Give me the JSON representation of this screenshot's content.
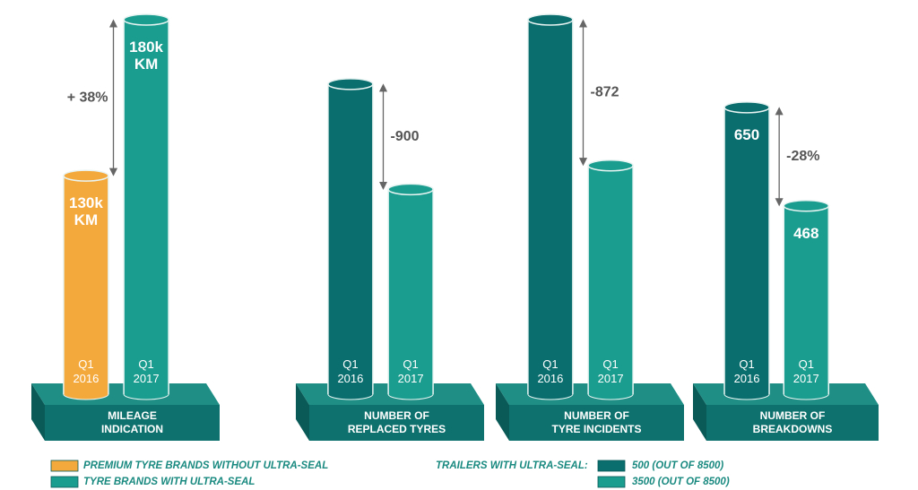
{
  "chart_data": [
    {
      "type": "bar",
      "title": [
        "MILEAGE",
        "INDICATION"
      ],
      "categories": [
        [
          "Q1",
          "2016"
        ],
        [
          "Q1",
          "2017"
        ]
      ],
      "values": [
        130,
        180
      ],
      "value_labels": [
        [
          "130k",
          "KM"
        ],
        [
          "180k",
          "KM"
        ]
      ],
      "colors": [
        "#f4a93d",
        "#1a9c8e"
      ],
      "ylim": [
        60,
        180
      ],
      "difference": "+ 38%"
    },
    {
      "type": "bar",
      "title": [
        "NUMBER OF",
        "REPLACED TYRES"
      ],
      "categories": [
        [
          "Q1",
          "2016"
        ],
        [
          "Q1",
          "2017"
        ]
      ],
      "values": [
        2650,
        1750
      ],
      "colors": [
        "#0a6d6e",
        "#1a9c8e"
      ],
      "ylim": [
        0,
        3200
      ],
      "difference": "-900"
    },
    {
      "type": "bar",
      "title": [
        "NUMBER OF",
        "TYRE INCIDENTS"
      ],
      "categories": [
        [
          "Q1",
          "2016"
        ],
        [
          "Q1",
          "2017"
        ]
      ],
      "values": [
        2240,
        1368
      ],
      "colors": [
        "#0a6d6e",
        "#1a9c8e"
      ],
      "ylim": [
        0,
        2240
      ],
      "difference": "-872"
    },
    {
      "type": "bar",
      "title": [
        "NUMBER OF",
        "BREAKDOWNS"
      ],
      "categories": [
        [
          "Q1",
          "2016"
        ],
        [
          "Q1",
          "2017"
        ]
      ],
      "values": [
        650,
        468
      ],
      "value_labels": [
        [
          "650"
        ],
        [
          "468"
        ]
      ],
      "colors": [
        "#0a6d6e",
        "#1a9c8e"
      ],
      "ylim": [
        120,
        812
      ],
      "difference": "-28%"
    }
  ],
  "legend": {
    "items": [
      {
        "name": "PREMIUM TYRE BRANDS WITHOUT ULTRA-SEAL",
        "color": "#f4a93d"
      },
      {
        "name": "TYRE BRANDS WITH ULTRA-SEAL",
        "color": "#1a9c8e"
      }
    ],
    "trailers_title": "TRAILERS WITH ULTRA-SEAL:",
    "trailers": [
      {
        "name": "500 (OUT OF 8500)",
        "color": "#0a6d6e"
      },
      {
        "name": "3500 (OUT OF 8500)",
        "color": "#1a9c8e"
      }
    ]
  }
}
